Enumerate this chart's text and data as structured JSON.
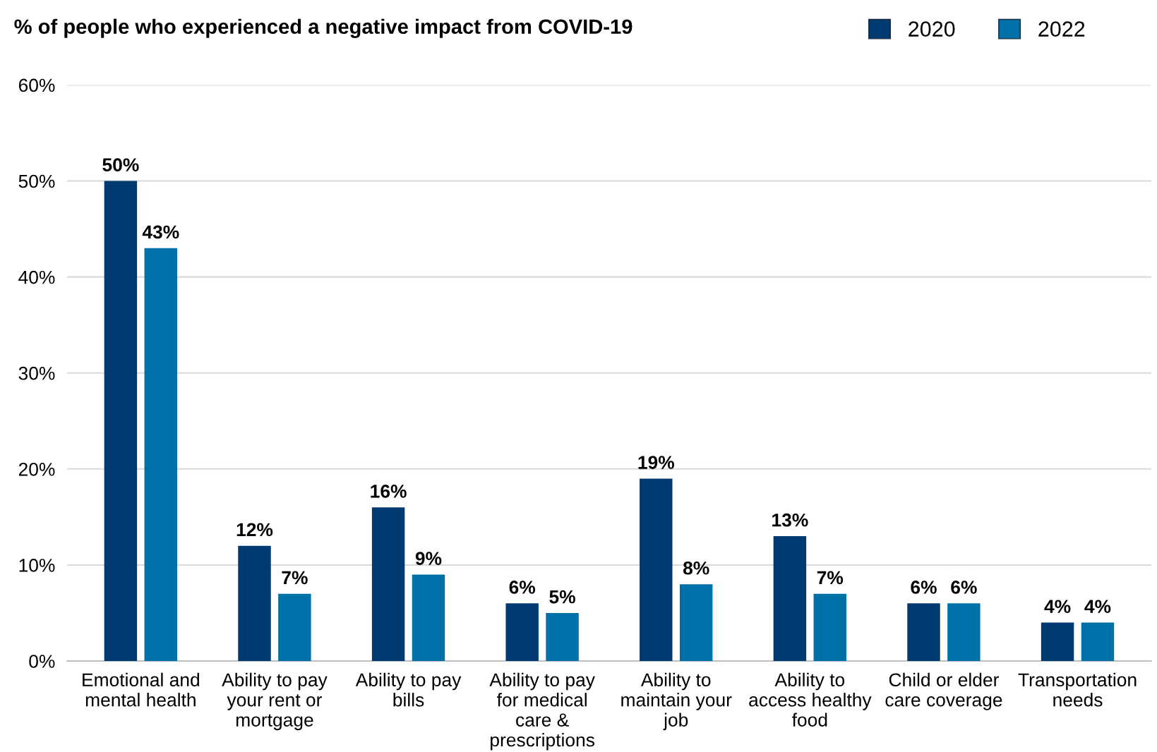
{
  "chart_data": {
    "type": "bar",
    "title": "% of people who experienced a negative impact from COVID-19",
    "categories": [
      "Emotional and mental health",
      "Ability to pay your rent or mortgage",
      "Ability to pay bills",
      "Ability to pay for medical care & prescriptions",
      "Ability to maintain your job",
      "Ability to access healthy food",
      "Child or elder care coverage",
      "Transportation needs"
    ],
    "series": [
      {
        "name": "2020",
        "color": "#003a70",
        "values": [
          50,
          12,
          16,
          6,
          19,
          13,
          6,
          4
        ],
        "value_labels": [
          "50%",
          "12%",
          "16%",
          "6%",
          "19%",
          "13%",
          "6%",
          "4%"
        ]
      },
      {
        "name": "2022",
        "color": "#0070a8",
        "values": [
          43,
          7,
          9,
          5,
          8,
          7,
          6,
          4
        ],
        "value_labels": [
          "43%",
          "7%",
          "9%",
          "5%",
          "8%",
          "7%",
          "6%",
          "4%"
        ]
      }
    ],
    "ylim": [
      0,
      60
    ],
    "yticks": [
      {
        "value": 0,
        "label": "0%"
      },
      {
        "value": 10,
        "label": "10%"
      },
      {
        "value": 20,
        "label": "20%"
      },
      {
        "value": 30,
        "label": "30%"
      },
      {
        "value": 40,
        "label": "40%"
      },
      {
        "value": 50,
        "label": "50%"
      },
      {
        "value": 60,
        "label": "60%"
      }
    ],
    "grid": "y",
    "legend": "top right"
  }
}
